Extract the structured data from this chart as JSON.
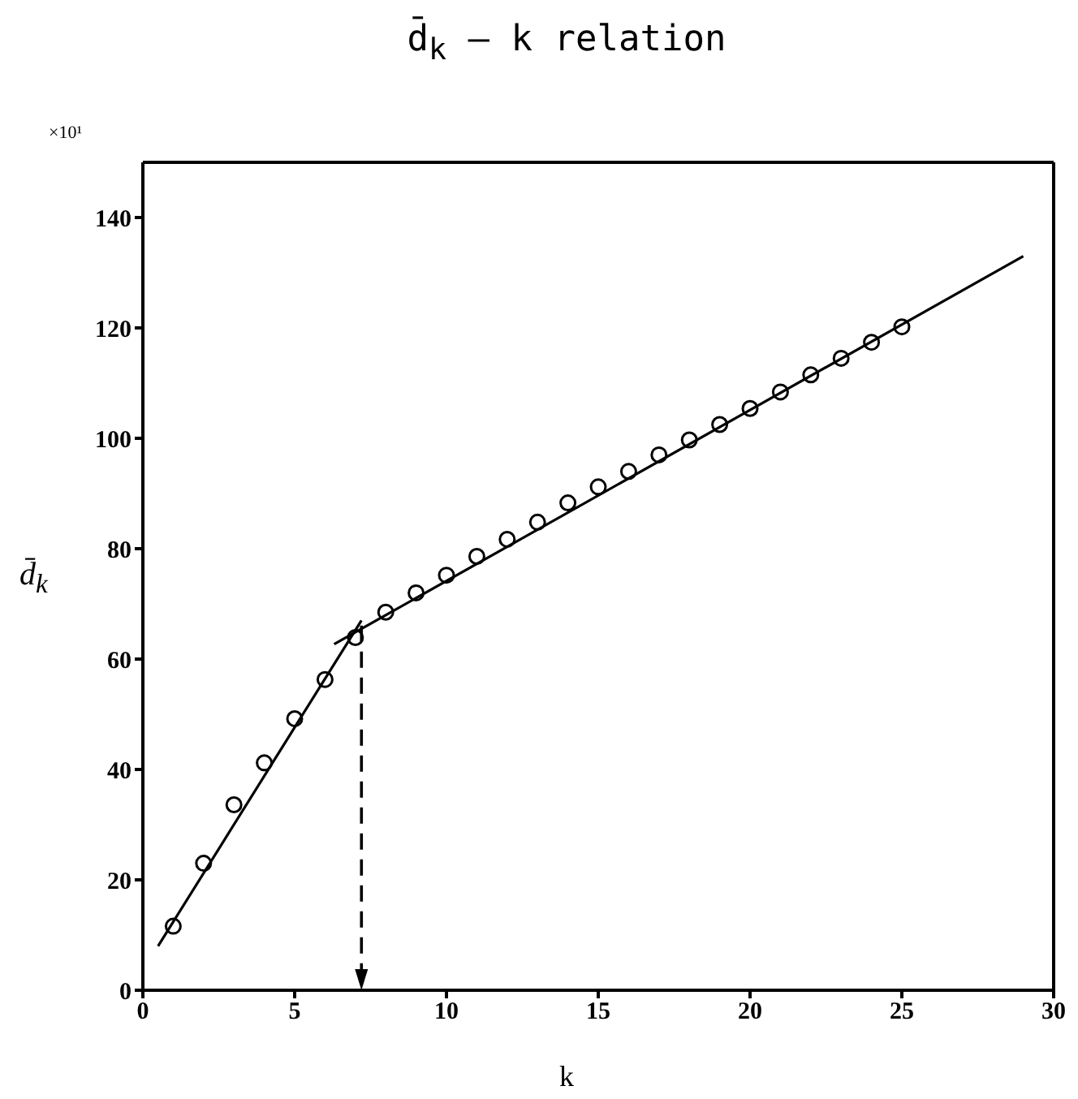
{
  "chart_data": {
    "type": "scatter",
    "title": "d̄$_{k}$ — k relation",
    "xlabel": "k",
    "ylabel": "d̄$_{k}$",
    "annotations": [
      "×10¹"
    ],
    "xlim": [
      0,
      30
    ],
    "xticks": [
      0,
      5,
      10,
      15,
      20,
      25,
      30
    ],
    "ylim": [
      0,
      150
    ],
    "yticks": [
      0,
      20,
      40,
      60,
      80,
      100,
      120,
      140
    ],
    "marker": "circle",
    "series": [
      {
        "color": "#000000",
        "x": [
          1,
          2,
          3,
          4,
          5,
          6,
          7,
          8,
          9,
          10,
          11,
          12,
          13,
          14,
          15,
          16,
          17,
          18,
          19,
          20,
          21,
          22,
          23,
          24,
          25
        ],
        "values": [
          11.6,
          23,
          33.6,
          41.2,
          49.2,
          56.3,
          63.9,
          68.5,
          72,
          75.2,
          78.6,
          81.7,
          84.8,
          88.3,
          91.2,
          94,
          97,
          99.7,
          102.5,
          105.4,
          108.4,
          111.5,
          114.5,
          117.4,
          120.2
        ]
      },
      {
        "type": "line",
        "color": "#000000",
        "marker": "none",
        "x": [
          0.5,
          7.2
        ],
        "values": [
          8,
          67
        ]
      },
      {
        "type": "line",
        "color": "#000000",
        "marker": "none",
        "x": [
          6.3,
          29
        ],
        "values": [
          62.7,
          133
        ]
      }
    ],
    "ref_lines": [
      {
        "axis": "x",
        "value": 7.2,
        "line_style": "dashed",
        "color": "#000000"
      }
    ]
  }
}
